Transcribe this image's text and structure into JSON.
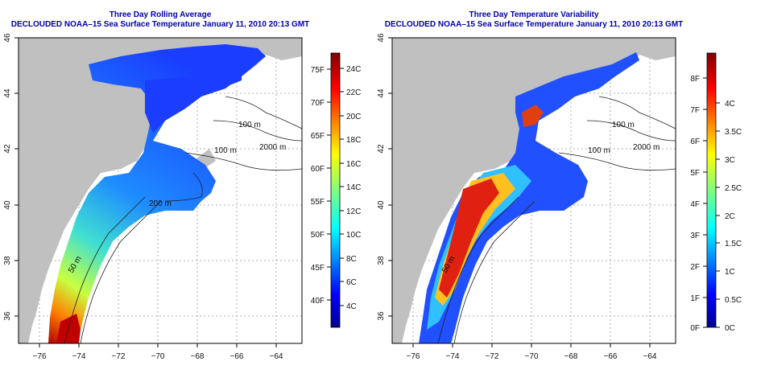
{
  "date_line": "DECLOUDED NOAA–15 Sea Surface Temperature January 11, 2010 20:13 GMT",
  "panels": [
    {
      "title": "Three Day Rolling Average",
      "lon_ticks": [
        "−76",
        "−74",
        "−72",
        "−70",
        "−68",
        "−66",
        "−64"
      ],
      "lat_ticks": [
        "46",
        "44",
        "42",
        "40",
        "38",
        "36"
      ],
      "contours": [
        "100 m",
        "100 m",
        "2000 m",
        "200 m",
        "50 m"
      ],
      "colorbar": {
        "fahrenheit": [
          "75F",
          "70F",
          "65F",
          "60F",
          "55F",
          "50F",
          "45F",
          "40F"
        ],
        "celsius": [
          "24C",
          "22C",
          "20C",
          "18C",
          "16C",
          "14C",
          "12C",
          "10C",
          "8C",
          "6C",
          "4C"
        ]
      }
    },
    {
      "title": "Three Day Temperature Variability",
      "lon_ticks": [
        "−76",
        "−74",
        "−72",
        "−70",
        "−68",
        "−66",
        "−64"
      ],
      "lat_ticks": [
        "46",
        "44",
        "42",
        "40",
        "38",
        "36"
      ],
      "contours": [
        "100 m",
        "100 m",
        "2000 m",
        "50 m"
      ],
      "colorbar": {
        "fahrenheit": [
          "8F",
          "7F",
          "6F",
          "5F",
          "4F",
          "3F",
          "2F",
          "1F",
          "0F"
        ],
        "celsius": [
          "4C",
          "3.5C",
          "3C",
          "2.5C",
          "2C",
          "1.5C",
          "1C",
          "0.5C",
          "0C"
        ]
      }
    }
  ]
}
